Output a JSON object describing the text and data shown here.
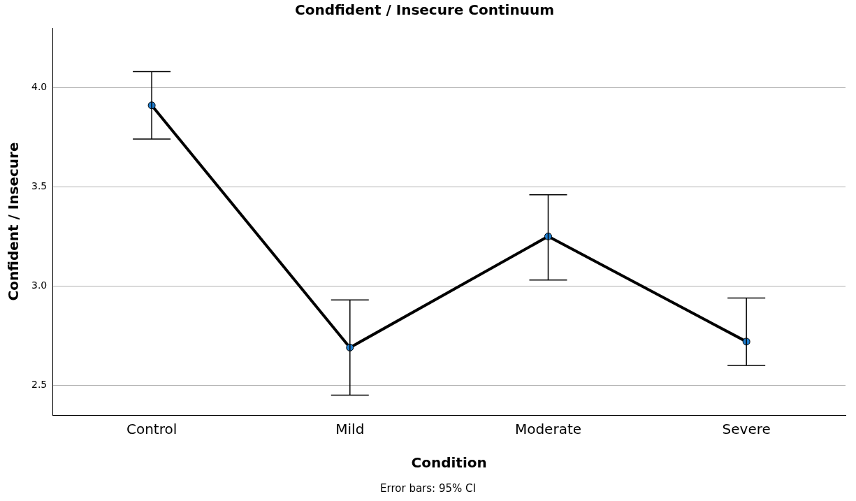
{
  "chart_data": {
    "type": "line",
    "title": "Condfident / Insecure Continuum",
    "xlabel": "Condition",
    "ylabel": "Confident / Insecure",
    "categories": [
      "Control",
      "Mild",
      "Moderate",
      "Severe"
    ],
    "series": [
      {
        "color": "#000000",
        "values": [
          3.91,
          2.69,
          3.25,
          2.72
        ],
        "errors": [
          [
            3.74,
            4.08
          ],
          [
            2.45,
            2.93
          ],
          [
            3.03,
            3.46
          ],
          [
            2.6,
            2.94
          ]
        ]
      }
    ],
    "ylim": [
      2.35,
      4.3
    ],
    "yticks": [
      {
        "value": 2.5,
        "label": "2.5"
      },
      {
        "value": 3.0,
        "label": "3.0"
      },
      {
        "value": 3.5,
        "label": "3.5"
      },
      {
        "value": 4.0,
        "label": "4.0"
      }
    ],
    "grid": "y",
    "legend": false,
    "marker": "circle",
    "line_style": "solid",
    "annotations": [
      "Error bars: 95% CI"
    ]
  }
}
